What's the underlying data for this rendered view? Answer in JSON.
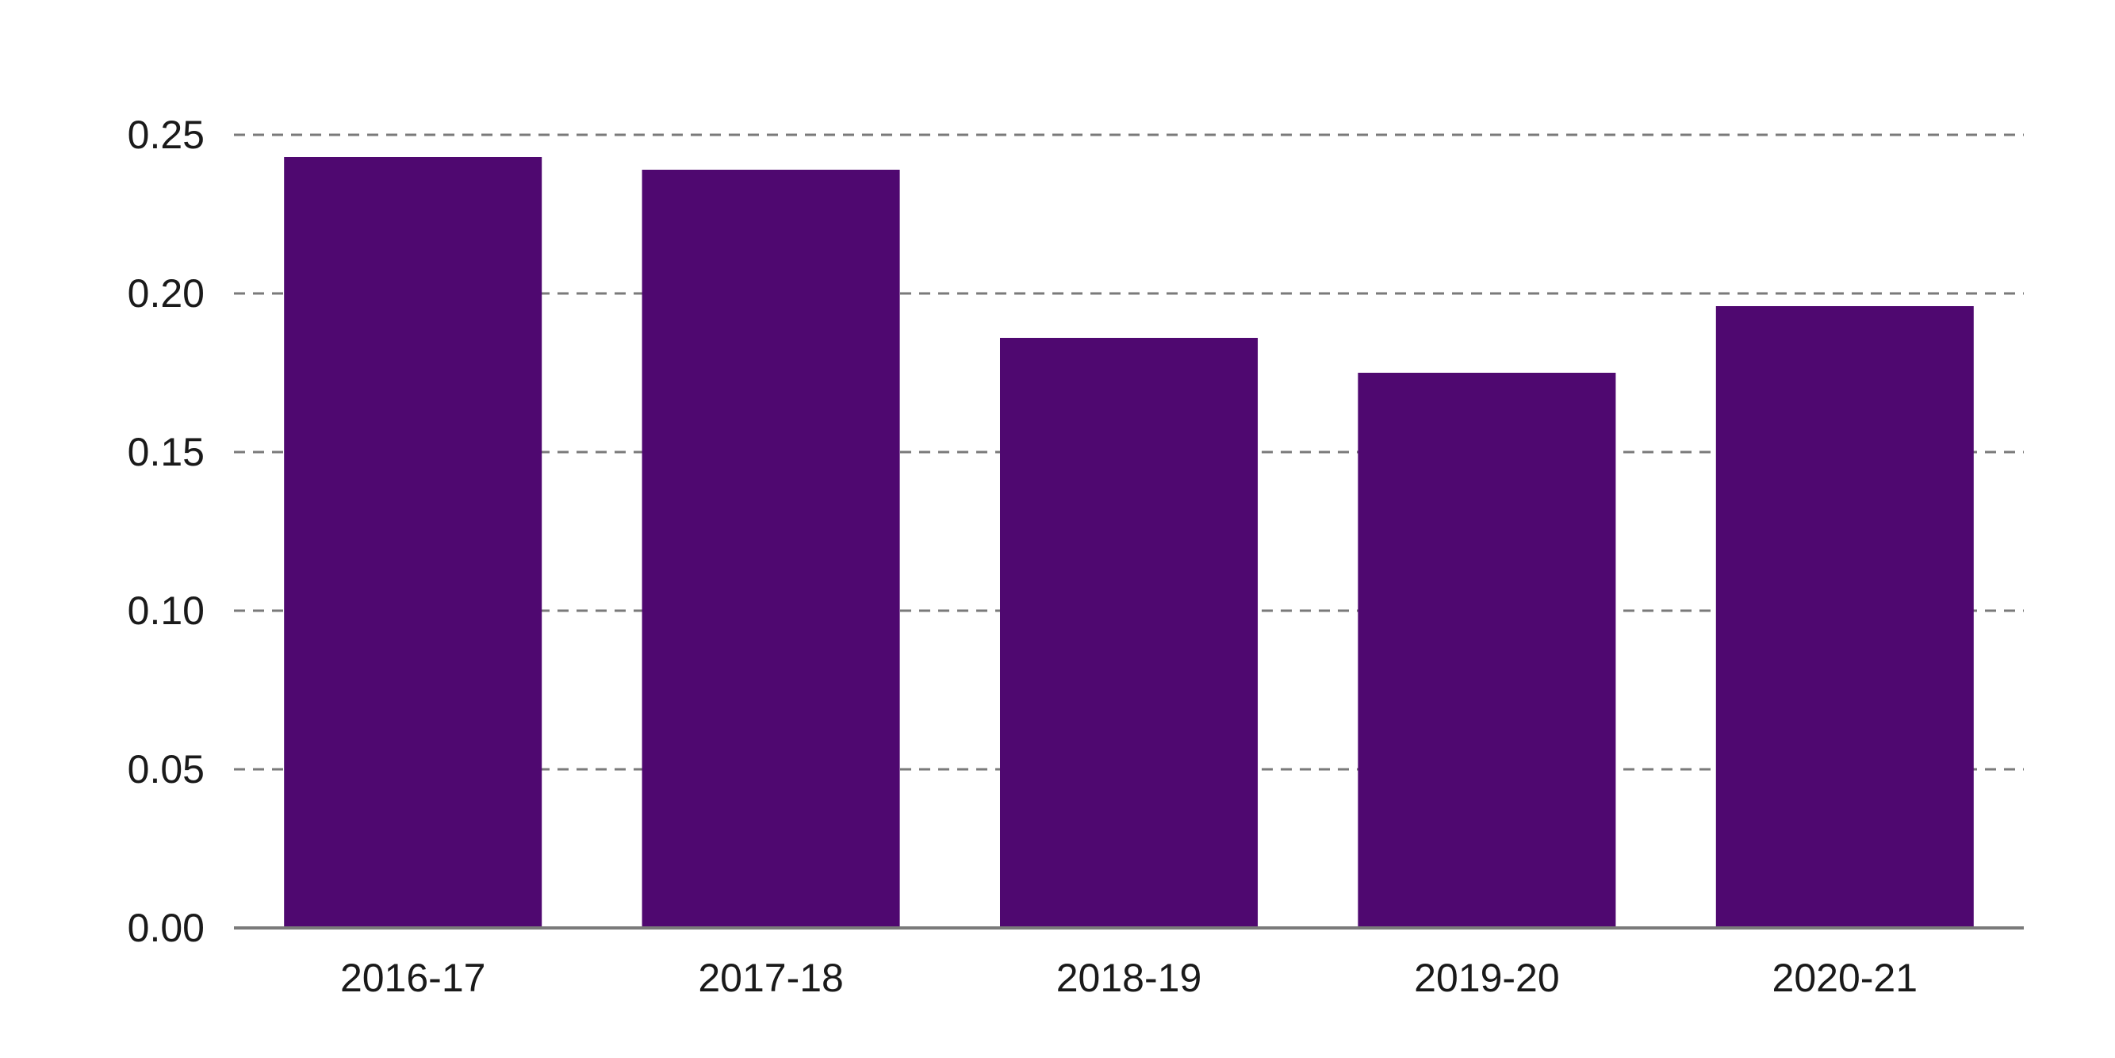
{
  "chart_data": {
    "type": "bar",
    "categories": [
      "2016-17",
      "2017-18",
      "2018-19",
      "2019-20",
      "2020-21"
    ],
    "values": [
      0.243,
      0.239,
      0.186,
      0.175,
      0.196
    ],
    "ylim": [
      0,
      0.25
    ],
    "yticks": [
      "0.00",
      "0.05",
      "0.10",
      "0.15",
      "0.20",
      "0.25"
    ],
    "grid": true,
    "colors": {
      "bar": "#4f0870",
      "grid": "#7a7a7a",
      "axis": "#7a7a7a"
    }
  }
}
